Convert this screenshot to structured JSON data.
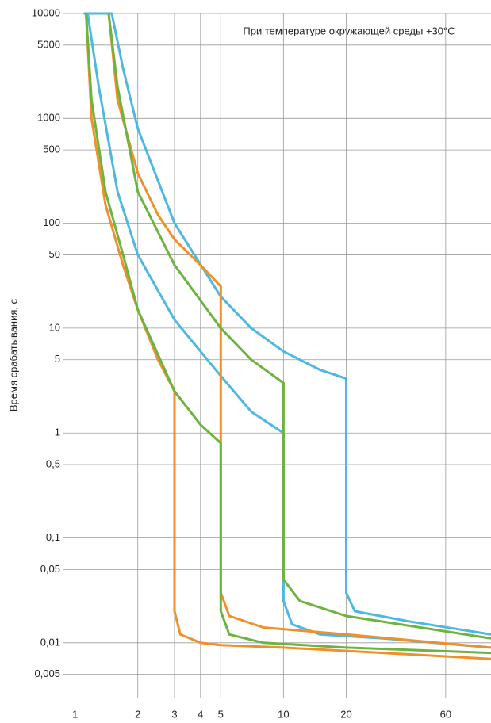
{
  "chart_data": {
    "type": "line",
    "annotation": "При температуре окружающей среды +30°C",
    "y_label": "Время срабатывания, с",
    "log_x": true,
    "log_y": true,
    "grid": true,
    "xlim": [
      0.88,
      99
    ],
    "ylim": [
      0.003,
      10000
    ],
    "xticks": [
      1,
      2,
      3,
      4,
      5,
      10,
      20,
      60
    ],
    "yticks": [
      10000,
      5000,
      1000,
      500,
      100,
      50,
      10,
      5,
      1,
      {
        "value": 0.5,
        "label": "0,5"
      },
      {
        "value": 0.1,
        "label": "0,1"
      },
      {
        "value": 0.05,
        "label": "0,05"
      },
      {
        "value": 0.01,
        "label": "0,01"
      },
      {
        "value": 0.005,
        "label": "0,005"
      }
    ],
    "series": [
      {
        "color": "#4db8e0",
        "x": [
          1.15,
          1.3,
          1.6,
          2,
          3,
          5,
          7,
          10,
          10,
          11,
          15,
          30,
          99
        ],
        "values": [
          10000,
          2000,
          200,
          50,
          12,
          3.5,
          1.6,
          1,
          0.025,
          0.015,
          0.012,
          0.011,
          0.009
        ]
      },
      {
        "color": "#4db8e0",
        "x": [
          1.1,
          1.5,
          1.7,
          2,
          3,
          5,
          7,
          10,
          15,
          20,
          20,
          22,
          40,
          99
        ],
        "values": [
          10000,
          10000,
          3000,
          800,
          100,
          20,
          10,
          6,
          4,
          3.3,
          0.03,
          0.02,
          0.016,
          0.012
        ]
      },
      {
        "color": "#f0902a",
        "x": [
          1.13,
          1.2,
          1.4,
          1.7,
          2,
          2.5,
          3,
          3,
          3.2,
          4,
          5,
          10,
          30,
          99
        ],
        "values": [
          10000,
          1000,
          150,
          40,
          15,
          5,
          2.5,
          0.02,
          0.012,
          0.01,
          0.0095,
          0.009,
          0.008,
          0.007
        ]
      },
      {
        "color": "#f0902a",
        "x": [
          1.45,
          1.6,
          2,
          2.5,
          3,
          4,
          5,
          5,
          5.5,
          8,
          20,
          99
        ],
        "values": [
          10000,
          1500,
          300,
          120,
          70,
          40,
          25,
          0.03,
          0.018,
          0.014,
          0.012,
          0.009
        ]
      },
      {
        "color": "#6db33f",
        "x": [
          1.13,
          1.2,
          1.4,
          1.7,
          2,
          3,
          4,
          5,
          5,
          5.5,
          8,
          20,
          99
        ],
        "values": [
          10000,
          1500,
          200,
          50,
          15,
          2.5,
          1.2,
          0.8,
          0.02,
          0.012,
          0.01,
          0.009,
          0.008
        ]
      },
      {
        "color": "#6db33f",
        "x": [
          1.45,
          1.6,
          2,
          3,
          5,
          7,
          10,
          10,
          12,
          20,
          99
        ],
        "values": [
          10000,
          2000,
          200,
          40,
          10,
          5,
          3,
          0.04,
          0.025,
          0.018,
          0.011
        ]
      }
    ]
  }
}
